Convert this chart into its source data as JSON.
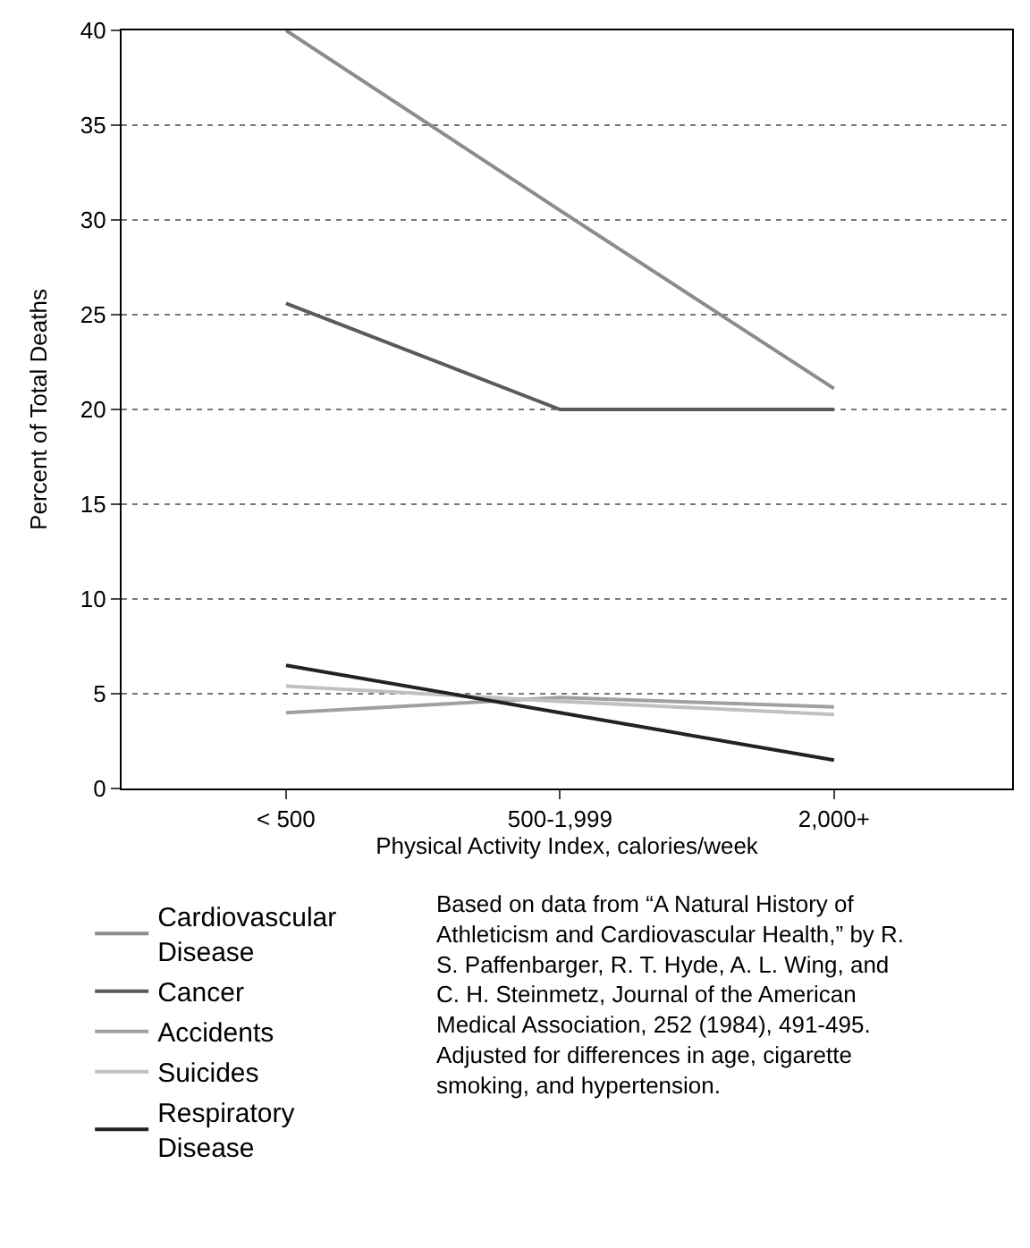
{
  "chart_data": {
    "type": "line",
    "xlabel": "Physical Activity Index, calories/week",
    "ylabel": "Percent of Total Deaths",
    "categories": [
      "< 500",
      "500-1,999",
      "2,000+"
    ],
    "series": [
      {
        "name": "Cardiovascular Disease",
        "color": "#8c8c8c",
        "values": [
          40,
          30.5,
          21.1
        ]
      },
      {
        "name": "Cancer",
        "color": "#5a5a5a",
        "values": [
          25.6,
          20,
          20
        ]
      },
      {
        "name": "Accidents",
        "color": "#a0a0a0",
        "values": [
          4.0,
          4.8,
          4.3
        ]
      },
      {
        "name": "Suicides",
        "color": "#c0c0c0",
        "values": [
          5.4,
          4.6,
          3.9
        ]
      },
      {
        "name": "Respiratory Disease",
        "color": "#222222",
        "values": [
          6.5,
          4.0,
          1.5
        ]
      }
    ],
    "ylim": [
      0,
      40
    ],
    "yticks": [
      0,
      5,
      10,
      15,
      20,
      25,
      30,
      35,
      40
    ],
    "grid": "y",
    "legend": "bottom left",
    "marker": "none",
    "line_style": "solid",
    "annotations": [
      "Based on data from “A Natural History of Athleticism and Cardiovascular Health,” by R. S. Paffenbarger, R. T. Hyde, A. L. Wing, and C. H. Steinmetz, Journal of the American Medical Association, 252 (1984), 491-495. Adjusted for differences in age, cigarette smoking, and hypertension."
    ]
  }
}
